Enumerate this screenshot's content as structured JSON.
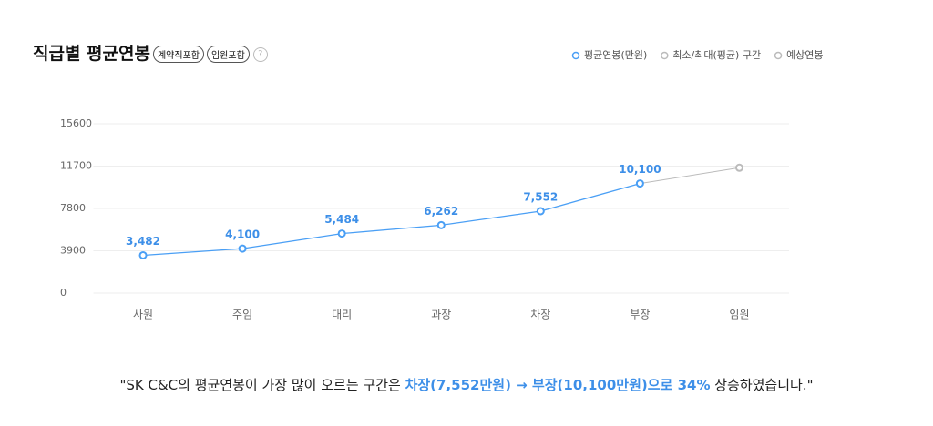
{
  "header": {
    "title": "직급별 평균연봉",
    "badges": [
      "계약직포함",
      "임원포함"
    ],
    "help": "?"
  },
  "chart_data": {
    "type": "line",
    "categories": [
      "사원",
      "주임",
      "대리",
      "과장",
      "차장",
      "부장",
      "임원"
    ],
    "series": [
      {
        "name": "평균연봉(만원)",
        "color": "#4a9ff5",
        "values": [
          3482,
          4100,
          5484,
          6262,
          7552,
          10100,
          null
        ],
        "value_labels": [
          "3,482",
          "4,100",
          "5,484",
          "6,262",
          "7,552",
          "10,100",
          null
        ]
      },
      {
        "name": "최소/최대(평균) 구간",
        "color": "#bbbbbb",
        "values": [
          null,
          null,
          null,
          null,
          null,
          null,
          null
        ]
      },
      {
        "name": "예상연봉",
        "color": "#bbbbbb",
        "values": [
          null,
          null,
          null,
          null,
          null,
          null,
          11550
        ]
      }
    ],
    "ylim": [
      0,
      15600
    ],
    "yticks": [
      0,
      3900,
      7800,
      11700,
      15600
    ],
    "grid": true
  },
  "summary": {
    "before": "\"SK C&C의 평균연봉이 가장 많이 오르는 구간은 ",
    "highlight": "차장(7,552만원) → 부장(10,100만원)으로 34%",
    "after": " 상승하였습니다.\""
  }
}
